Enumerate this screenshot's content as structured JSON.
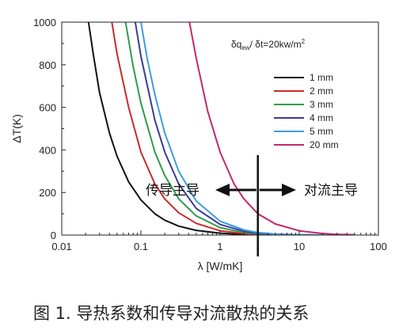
{
  "caption": "图 1. 导热系数和传导对流散热的关系",
  "chart_data": {
    "type": "line",
    "xlabel": "λ [W/mK]",
    "ylabel": "ΔT(K)",
    "x_scale": "log",
    "xlim": [
      0.01,
      100
    ],
    "ylim": [
      0,
      1000
    ],
    "x_ticks": [
      0.01,
      0.1,
      1,
      10,
      100
    ],
    "x_tick_labels": [
      "0.01",
      "0.1",
      "1",
      "10",
      "100"
    ],
    "y_ticks": [
      0,
      200,
      400,
      600,
      800,
      1000
    ],
    "y_tick_labels": [
      "0",
      "200",
      "400",
      "600",
      "800",
      "1000"
    ],
    "grid": false,
    "legend_position": "right",
    "annotation": {
      "formula_main": "δq",
      "formula_sub": "ew",
      "formula_rest": "/ δt=20kw/m",
      "formula_sup": "2"
    },
    "regions": {
      "left": "传导主导",
      "right": "对流主导"
    },
    "divider_x": 3,
    "series": [
      {
        "name": "1 mm",
        "color": "#111111",
        "x": [
          0.0218,
          0.025,
          0.03,
          0.04,
          0.05,
          0.07,
          0.1,
          0.15,
          0.2,
          0.3,
          0.5,
          1,
          2,
          3,
          5
        ],
        "y": [
          1000,
          850,
          670,
          480,
          370,
          250,
          165,
          100,
          70,
          42,
          22,
          9,
          3,
          1.5,
          0.5
        ]
      },
      {
        "name": "2 mm",
        "color": "#cc2a2a",
        "x": [
          0.043,
          0.05,
          0.07,
          0.1,
          0.15,
          0.2,
          0.3,
          0.5,
          1,
          2,
          3,
          5,
          10
        ],
        "y": [
          1000,
          850,
          600,
          390,
          240,
          170,
          105,
          55,
          20,
          7,
          3.5,
          1.5,
          0.5
        ]
      },
      {
        "name": "3 mm",
        "color": "#2f9c4a",
        "x": [
          0.064,
          0.08,
          0.1,
          0.15,
          0.2,
          0.3,
          0.5,
          1,
          2,
          3,
          5,
          10,
          15
        ],
        "y": [
          1000,
          790,
          620,
          390,
          280,
          170,
          90,
          35,
          12,
          6,
          2.5,
          0.8,
          0.4
        ]
      },
      {
        "name": "4 mm",
        "color": "#3a3a9a",
        "x": [
          0.085,
          0.1,
          0.15,
          0.2,
          0.3,
          0.5,
          1,
          2,
          3,
          5,
          10,
          15
        ],
        "y": [
          1000,
          840,
          540,
          390,
          240,
          125,
          50,
          18,
          9,
          4,
          1.2,
          0.6
        ]
      },
      {
        "name": "5 mm",
        "color": "#3d9de0",
        "x": [
          0.1,
          0.12,
          0.15,
          0.2,
          0.3,
          0.5,
          1,
          2,
          3,
          5,
          10,
          20
        ],
        "y": [
          1000,
          830,
          660,
          480,
          300,
          160,
          65,
          24,
          12,
          5,
          1.6,
          0.5
        ]
      },
      {
        "name": "20 mm",
        "color": "#c4286a",
        "x": [
          0.41,
          0.5,
          0.7,
          1,
          1.5,
          2,
          3,
          5,
          10,
          20,
          30,
          50
        ],
        "y": [
          1000,
          830,
          580,
          390,
          240,
          170,
          100,
          52,
          20,
          7,
          3.5,
          1.5
        ]
      }
    ]
  }
}
